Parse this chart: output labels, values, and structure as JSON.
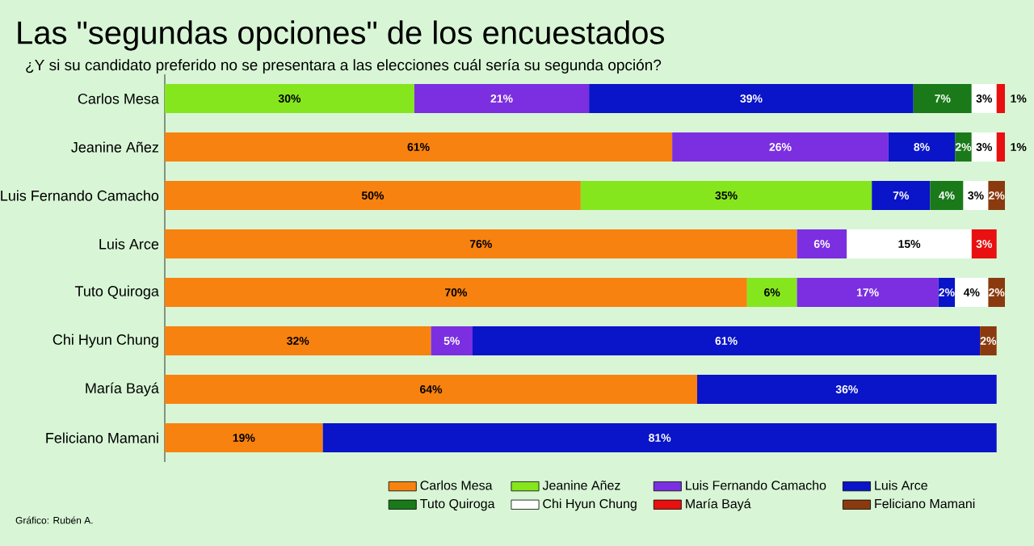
{
  "chart_data": {
    "type": "bar",
    "orientation": "horizontal",
    "stacked": true,
    "title": "Las \"segundas opciones\" de los encuestados",
    "subtitle": "¿Y si su candidato preferido no se presentara a las elecciones cuál sería su segunda opción?",
    "annotations": [
      "Gráfico: Rubén A."
    ],
    "legend": "bottom",
    "tick_labels": "y",
    "xlim": [
      0,
      101
    ],
    "categories": [
      "Carlos Mesa",
      "Jeanine Añez",
      "Luis Fernando Camacho",
      "Luis Arce",
      "Tuto Quiroga",
      "Chi Hyun Chung",
      "María Bayá",
      "Feliciano Mamani"
    ],
    "series": [
      {
        "name": "Carlos Mesa",
        "color": "#f7820f",
        "values": [
          null,
          61,
          50,
          76,
          70,
          32,
          64,
          19
        ],
        "value_labels": [
          null,
          "61%",
          "50%",
          "76%",
          "70%",
          "32%",
          "64%",
          "19%"
        ]
      },
      {
        "name": "Jeanine Añez",
        "color": "#86e61e",
        "values": [
          30,
          null,
          35,
          null,
          6,
          null,
          null,
          null
        ],
        "value_labels": [
          "30%",
          null,
          "35%",
          null,
          "6%",
          null,
          null,
          null
        ]
      },
      {
        "name": "Luis Fernando Camacho",
        "color": "#7b2fe0",
        "values": [
          21,
          26,
          null,
          6,
          17,
          5,
          null,
          null
        ],
        "value_labels": [
          "21%",
          "26%",
          null,
          "6%",
          "17%",
          "5%",
          null,
          null
        ]
      },
      {
        "name": "Luis Arce",
        "color": "#0a14c8",
        "values": [
          39,
          8,
          7,
          null,
          2,
          61,
          36,
          81
        ],
        "value_labels": [
          "39%",
          "8%",
          "7%",
          null,
          "2%",
          "61%",
          "36%",
          "81%"
        ]
      },
      {
        "name": "Tuto Quiroga",
        "color": "#1a7a1a",
        "values": [
          7,
          2,
          4,
          null,
          null,
          null,
          null,
          null
        ],
        "value_labels": [
          "7%",
          "2%",
          "4%",
          null,
          null,
          null,
          null,
          null
        ]
      },
      {
        "name": "Chi Hyun Chung",
        "color": "#ffffff",
        "values": [
          3,
          3,
          3,
          15,
          4,
          null,
          null,
          null
        ],
        "value_labels": [
          "3%",
          "3%",
          "3%",
          "15%",
          "4%",
          null,
          null,
          null
        ]
      },
      {
        "name": "María Bayá",
        "color": "#e81010",
        "values": [
          1,
          1,
          null,
          3,
          null,
          null,
          null,
          null
        ],
        "value_labels": [
          "1%",
          "1%",
          null,
          "3%",
          null,
          null,
          null,
          null
        ]
      },
      {
        "name": "Feliciano Mamani",
        "color": "#8b3a0f",
        "values": [
          null,
          null,
          2,
          null,
          2,
          2,
          null,
          null
        ],
        "value_labels": [
          null,
          null,
          "2%",
          null,
          "2%",
          "2%",
          null,
          null
        ]
      }
    ]
  }
}
